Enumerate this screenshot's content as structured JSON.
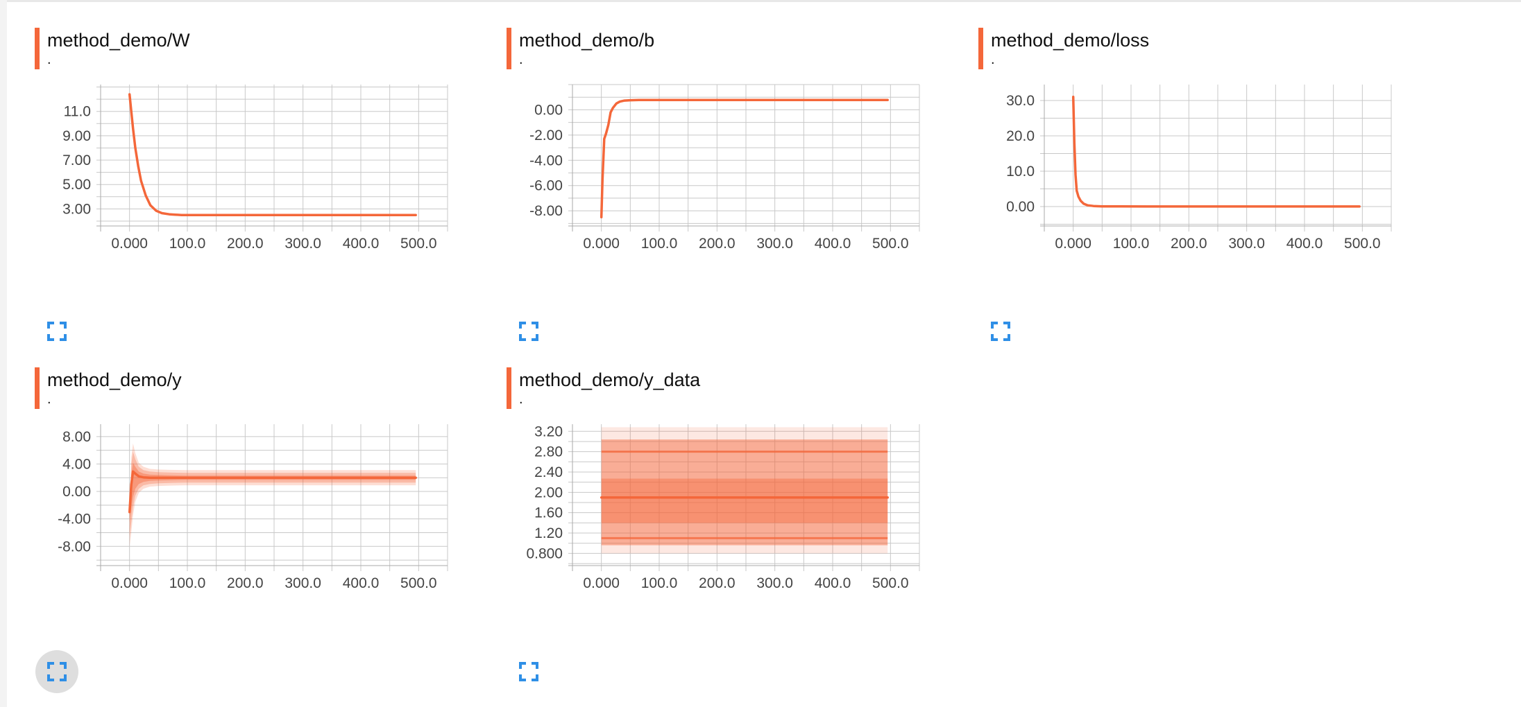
{
  "colors": {
    "accent": "#f4673a",
    "grid": "#c8c8c8",
    "tick_text": "#444444",
    "expand_icon": "#2f8fe6"
  },
  "cards": [
    {
      "title": "method_demo/W",
      "subtitle": ".",
      "expand_icon": "fullscreen-icon"
    },
    {
      "title": "method_demo/b",
      "subtitle": ".",
      "expand_icon": "fullscreen-icon"
    },
    {
      "title": "method_demo/loss",
      "subtitle": ".",
      "expand_icon": "fullscreen-icon"
    },
    {
      "title": "method_demo/y",
      "subtitle": ".",
      "expand_icon": "fullscreen-icon"
    },
    {
      "title": "method_demo/y_data",
      "subtitle": ".",
      "expand_icon": "fullscreen-icon"
    }
  ],
  "chart_data": [
    {
      "type": "line",
      "xticks": [
        "0.000",
        "100.0",
        "200.0",
        "300.0",
        "400.0",
        "500.0"
      ],
      "yticks": [
        "3.00",
        "5.00",
        "7.00",
        "9.00",
        "11.0"
      ],
      "xlim": [
        -50,
        550
      ],
      "ylim": [
        1.6,
        13.2
      ],
      "grid": true,
      "series": [
        {
          "x": [
            0,
            3,
            6,
            10,
            15,
            20,
            28,
            36,
            46,
            56,
            70,
            90,
            120,
            200,
            300,
            400,
            495
          ],
          "y": [
            12.4,
            11.0,
            9.6,
            8.0,
            6.5,
            5.3,
            4.1,
            3.3,
            2.85,
            2.65,
            2.55,
            2.5,
            2.5,
            2.5,
            2.5,
            2.5,
            2.5
          ]
        }
      ]
    },
    {
      "type": "line",
      "xticks": [
        "0.000",
        "100.0",
        "200.0",
        "300.0",
        "400.0",
        "500.0"
      ],
      "yticks": [
        "-8.00",
        "-6.00",
        "-4.00",
        "-2.00",
        "0.00"
      ],
      "xlim": [
        -50,
        550
      ],
      "ylim": [
        -9.2,
        2.0
      ],
      "grid": true,
      "series": [
        {
          "x": [
            0,
            2,
            5,
            8,
            12,
            16,
            20,
            26,
            32,
            40,
            50,
            65,
            85,
            120,
            200,
            300,
            400,
            495
          ],
          "y": [
            -8.5,
            -5.5,
            -2.3,
            -1.9,
            -1.2,
            -0.2,
            0.15,
            0.5,
            0.65,
            0.73,
            0.76,
            0.78,
            0.78,
            0.78,
            0.78,
            0.78,
            0.78,
            0.78
          ]
        }
      ]
    },
    {
      "type": "line",
      "xticks": [
        "0.000",
        "100.0",
        "200.0",
        "300.0",
        "400.0",
        "500.0"
      ],
      "yticks": [
        "0.00",
        "10.0",
        "20.0",
        "30.0"
      ],
      "xlim": [
        -50,
        550
      ],
      "ylim": [
        -5.5,
        34.5
      ],
      "grid": true,
      "series": [
        {
          "x": [
            0,
            2,
            4,
            6,
            9,
            13,
            18,
            25,
            35,
            50,
            80,
            150,
            300,
            495
          ],
          "y": [
            31.0,
            18.0,
            9.0,
            4.5,
            2.8,
            1.6,
            0.8,
            0.35,
            0.15,
            0.05,
            0.02,
            0.0,
            0.0,
            0.0
          ]
        }
      ]
    },
    {
      "type": "area",
      "xticks": [
        "0.000",
        "100.0",
        "200.0",
        "300.0",
        "400.0",
        "500.0"
      ],
      "yticks": [
        "-8.00",
        "-4.00",
        "0.00",
        "4.00",
        "8.00"
      ],
      "xlim": [
        -50,
        550
      ],
      "ylim": [
        -10.8,
        9.8
      ],
      "grid": true,
      "bands": [
        {
          "opacity": 0.22,
          "x": [
            0,
            3,
            6,
            10,
            16,
            24,
            35,
            50,
            70,
            100,
            495
          ],
          "upper": [
            -5.5,
            5.0,
            7.0,
            5.6,
            4.2,
            3.6,
            3.3,
            3.2,
            3.15,
            3.1,
            3.1
          ],
          "lower": [
            -8.0,
            -6.0,
            -3.5,
            -1.5,
            -0.2,
            0.4,
            0.7,
            0.8,
            0.85,
            0.9,
            0.9
          ]
        },
        {
          "opacity": 0.3,
          "x": [
            0,
            3,
            6,
            10,
            16,
            24,
            35,
            50,
            70,
            100,
            495
          ],
          "upper": [
            -4.0,
            4.0,
            5.8,
            4.7,
            3.6,
            3.1,
            2.9,
            2.8,
            2.75,
            2.7,
            2.7
          ],
          "lower": [
            -6.5,
            -4.5,
            -2.3,
            -0.6,
            0.4,
            0.9,
            1.1,
            1.2,
            1.25,
            1.3,
            1.3
          ]
        },
        {
          "opacity": 0.4,
          "x": [
            0,
            3,
            6,
            10,
            16,
            24,
            35,
            50,
            70,
            100,
            495
          ],
          "upper": [
            -2.0,
            2.5,
            4.2,
            3.6,
            2.9,
            2.6,
            2.45,
            2.4,
            2.35,
            2.3,
            2.3
          ],
          "lower": [
            -4.5,
            -2.5,
            -0.8,
            0.4,
            1.1,
            1.4,
            1.55,
            1.6,
            1.65,
            1.7,
            1.7
          ]
        }
      ],
      "series": [
        {
          "x": [
            0,
            3,
            6,
            10,
            16,
            24,
            35,
            50,
            70,
            100,
            495
          ],
          "y": [
            -3.0,
            1.0,
            2.9,
            2.6,
            2.2,
            2.05,
            2.0,
            2.0,
            2.0,
            2.0,
            2.0
          ]
        }
      ]
    },
    {
      "type": "area",
      "xticks": [
        "0.000",
        "100.0",
        "200.0",
        "300.0",
        "400.0",
        "500.0"
      ],
      "yticks": [
        "0.800",
        "1.20",
        "1.60",
        "2.00",
        "2.40",
        "2.80",
        "3.20"
      ],
      "xlim": [
        -50,
        550
      ],
      "ylim": [
        0.56,
        3.34
      ],
      "grid": true,
      "bands": [
        {
          "opacity": 0.15,
          "x": [
            0,
            495
          ],
          "upper": [
            3.28,
            3.28
          ],
          "lower": [
            0.8,
            0.8
          ]
        },
        {
          "opacity": 0.45,
          "x": [
            0,
            495
          ],
          "upper": [
            3.04,
            3.04
          ],
          "lower": [
            0.96,
            0.96
          ]
        },
        {
          "opacity": 0.4,
          "x": [
            0,
            495
          ],
          "upper": [
            2.27,
            2.27
          ],
          "lower": [
            1.4,
            1.4
          ]
        }
      ],
      "series": [
        {
          "x": [
            0,
            495
          ],
          "y": [
            1.9,
            1.9
          ]
        }
      ],
      "lines": [
        2.8,
        1.1
      ]
    }
  ]
}
